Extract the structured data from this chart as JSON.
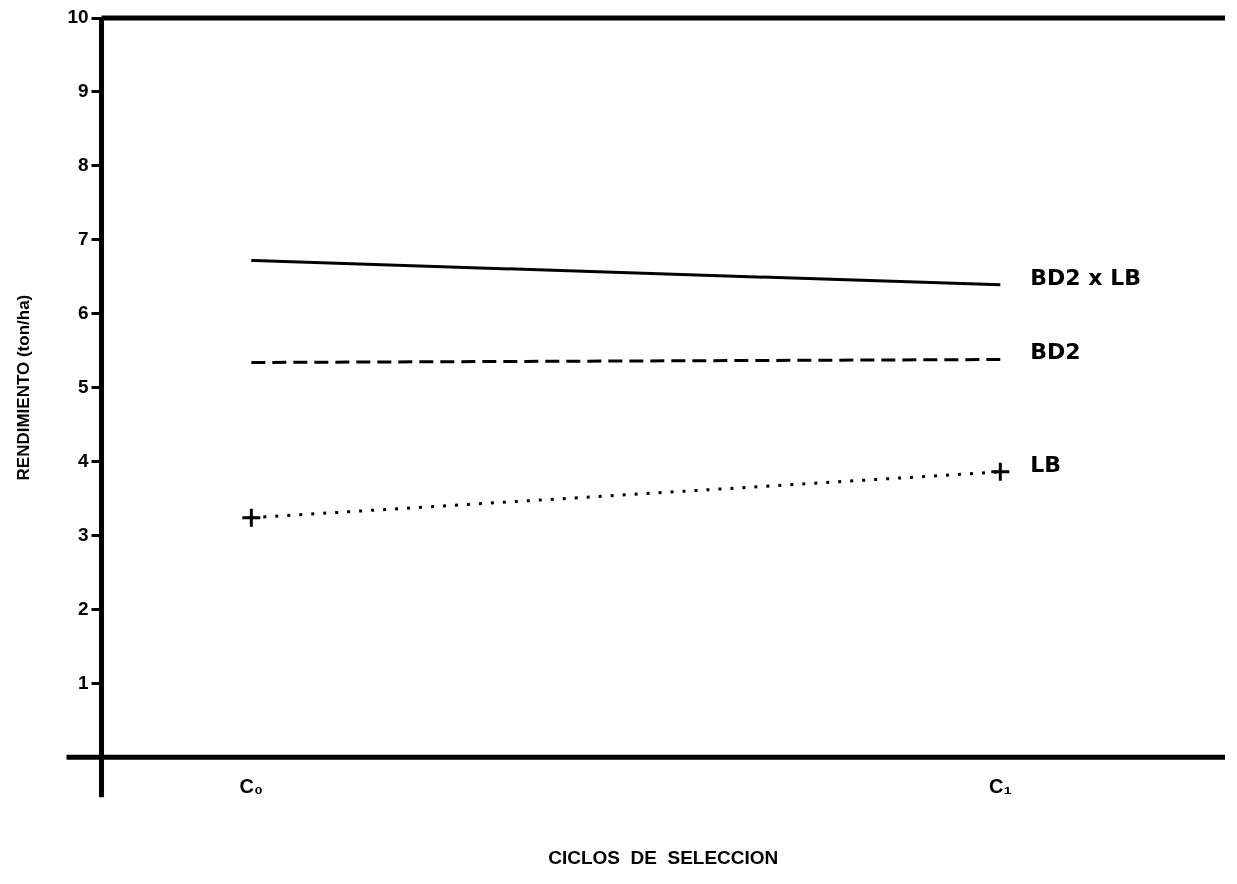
{
  "chart_data": {
    "type": "line",
    "xlabel": "CICLOS  DE  SELECCION",
    "ylabel": "RENDIMIENTO (ton/ha)",
    "categories": [
      "C₀",
      "C₁"
    ],
    "series": [
      {
        "name": "BD2 x LB",
        "color": "#000000",
        "values": [
          6.72,
          6.39
        ],
        "line_style": "solid",
        "marker": "none"
      },
      {
        "name": "BD2",
        "color": "#000000",
        "values": [
          5.34,
          5.38
        ],
        "line_style": "dashed",
        "marker": "none"
      },
      {
        "name": "LB",
        "color": "#000000",
        "values": [
          3.24,
          3.86
        ],
        "line_style": "dotted",
        "marker": "cross"
      }
    ],
    "ylim": [
      0,
      10
    ],
    "yticks": [
      1,
      2,
      3,
      4,
      5,
      6,
      7,
      8,
      9,
      10
    ],
    "grid": false,
    "legend": false
  }
}
